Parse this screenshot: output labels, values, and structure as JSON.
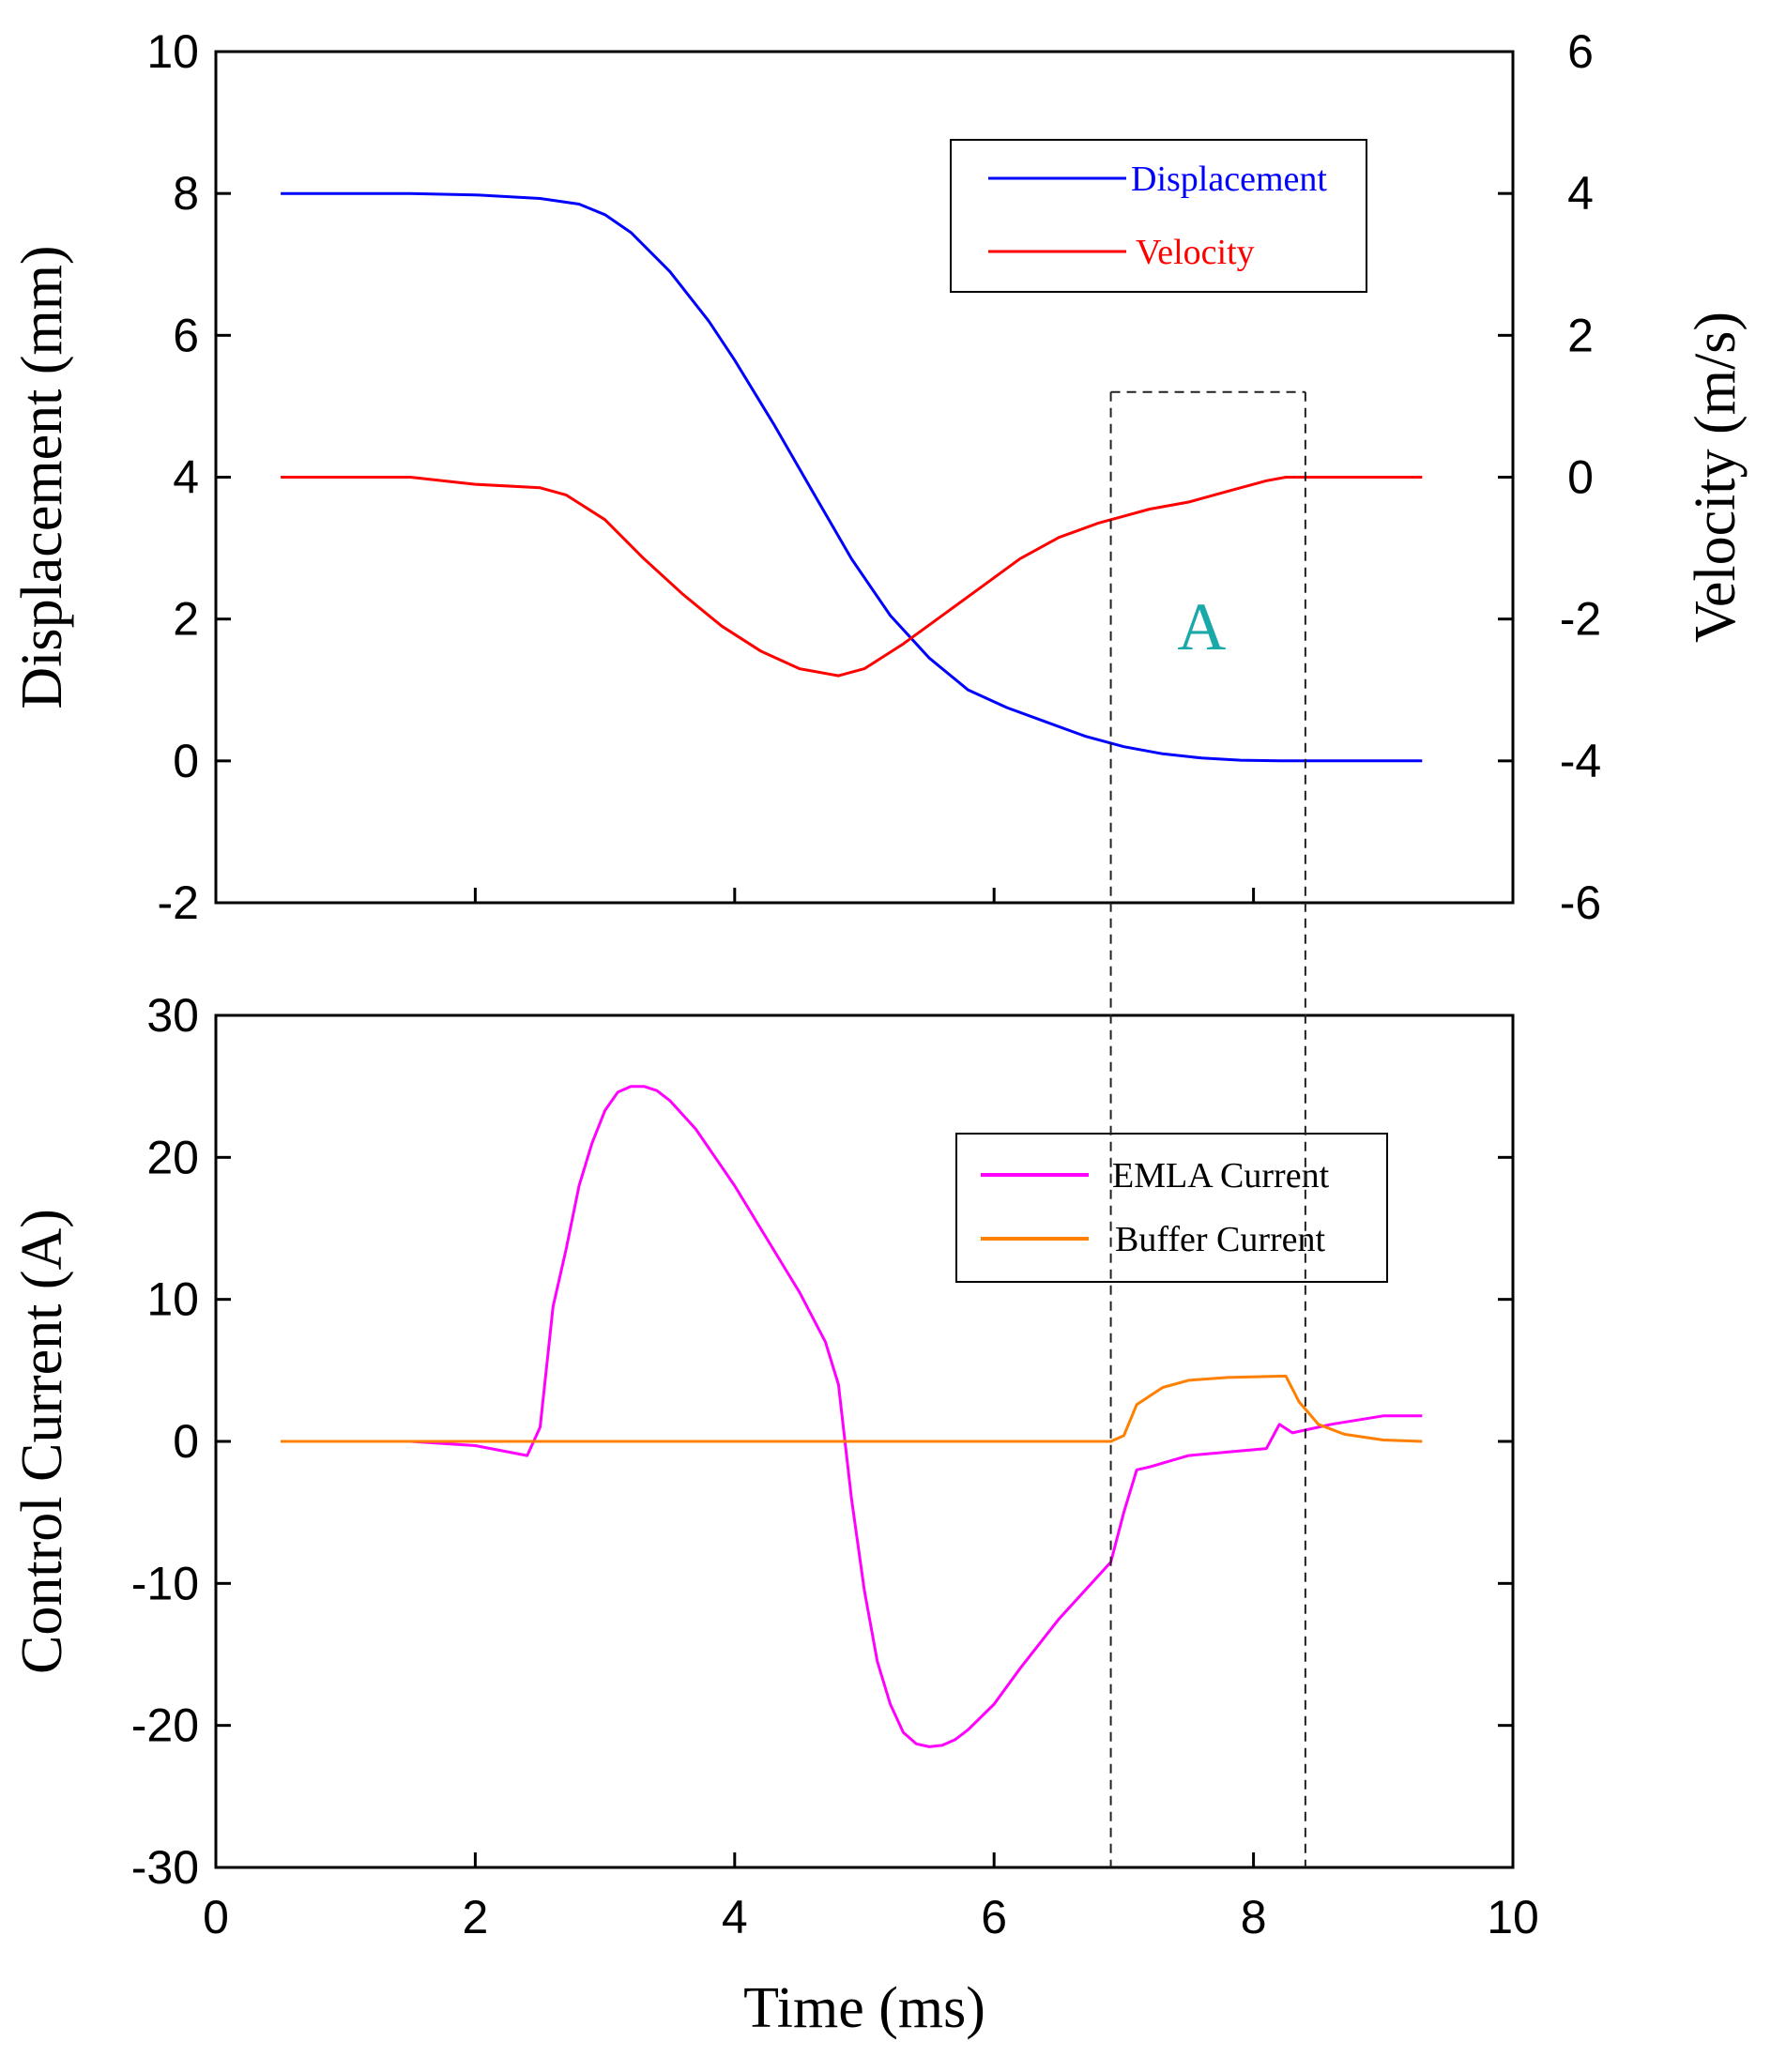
{
  "chart_data": [
    {
      "type": "line",
      "panel": "top",
      "xlabel": "Time (ms)",
      "xlim": [
        0,
        10
      ],
      "xticks": [
        0,
        2,
        4,
        6,
        8,
        10
      ],
      "ylabel": "Displacement (mm)",
      "ylim": [
        -2,
        10
      ],
      "yticks": [
        -2,
        0,
        2,
        4,
        6,
        8,
        10
      ],
      "y2label": "Velocity (m/s)",
      "y2lim": [
        -6,
        6
      ],
      "y2ticks": [
        -6,
        -4,
        -2,
        0,
        2,
        4,
        6
      ],
      "legend_position": "top-right",
      "annotation": {
        "text": "A",
        "x": 7.6,
        "y": 1.9,
        "box_x": [
          6.9,
          8.4
        ],
        "box_top_y": 5.2
      },
      "series": [
        {
          "name": "Displacement",
          "axis": "left",
          "color": "#0000ff",
          "x": [
            0.5,
            1.0,
            1.5,
            2.0,
            2.5,
            2.8,
            3.0,
            3.2,
            3.5,
            3.8,
            4.0,
            4.3,
            4.6,
            4.9,
            5.2,
            5.5,
            5.8,
            6.1,
            6.4,
            6.7,
            7.0,
            7.3,
            7.6,
            7.9,
            8.2,
            8.5,
            9.0,
            9.3
          ],
          "y": [
            8.0,
            8.0,
            8.0,
            7.98,
            7.93,
            7.85,
            7.7,
            7.45,
            6.9,
            6.2,
            5.65,
            4.75,
            3.8,
            2.85,
            2.05,
            1.45,
            1.0,
            0.75,
            0.55,
            0.35,
            0.2,
            0.1,
            0.04,
            0.01,
            0.0,
            0.0,
            0.0,
            0.0
          ]
        },
        {
          "name": "Velocity",
          "axis": "right",
          "color": "#ff0000",
          "x": [
            0.5,
            1.0,
            1.5,
            2.0,
            2.5,
            2.7,
            3.0,
            3.3,
            3.6,
            3.9,
            4.2,
            4.5,
            4.8,
            5.0,
            5.3,
            5.6,
            5.9,
            6.2,
            6.5,
            6.8,
            7.0,
            7.2,
            7.5,
            7.8,
            8.1,
            8.25,
            8.4,
            9.0,
            9.3
          ],
          "y": [
            0.0,
            0.0,
            0.0,
            -0.1,
            -0.15,
            -0.25,
            -0.6,
            -1.15,
            -1.65,
            -2.1,
            -2.45,
            -2.7,
            -2.8,
            -2.7,
            -2.35,
            -1.95,
            -1.55,
            -1.15,
            -0.85,
            -0.65,
            -0.55,
            -0.45,
            -0.35,
            -0.2,
            -0.05,
            0.0,
            0.0,
            0.0,
            0.0
          ]
        }
      ]
    },
    {
      "type": "line",
      "panel": "bottom",
      "xlabel": "Time (ms)",
      "xlim": [
        0,
        10
      ],
      "xticks": [
        0,
        2,
        4,
        6,
        8,
        10
      ],
      "ylabel": "Control Current (A)",
      "ylim": [
        -30,
        30
      ],
      "yticks": [
        -30,
        -20,
        -10,
        0,
        10,
        20,
        30
      ],
      "legend_position": "upper-right",
      "series": [
        {
          "name": "EMLA Current",
          "color": "#ff00ff",
          "x": [
            0.5,
            1.5,
            2.0,
            2.4,
            2.5,
            2.6,
            2.7,
            2.8,
            2.9,
            3.0,
            3.1,
            3.2,
            3.3,
            3.4,
            3.5,
            3.7,
            4.0,
            4.2,
            4.5,
            4.7,
            4.8,
            4.9,
            5.0,
            5.1,
            5.2,
            5.3,
            5.4,
            5.5,
            5.6,
            5.7,
            5.8,
            6.0,
            6.2,
            6.5,
            6.9,
            7.0,
            7.1,
            7.2,
            7.5,
            8.1,
            8.2,
            8.3,
            8.4,
            8.6,
            9.0,
            9.3
          ],
          "y": [
            0,
            0,
            -0.3,
            -1.0,
            1.0,
            9.5,
            13.5,
            18.0,
            21.0,
            23.3,
            24.6,
            25.0,
            25.0,
            24.7,
            24.0,
            22.0,
            18.0,
            15.0,
            10.5,
            7.0,
            4.0,
            -4.0,
            -10.5,
            -15.5,
            -18.5,
            -20.5,
            -21.3,
            -21.5,
            -21.4,
            -21.0,
            -20.3,
            -18.5,
            -16.0,
            -12.5,
            -8.5,
            -5.0,
            -2.0,
            -1.8,
            -1.0,
            -0.5,
            1.2,
            0.6,
            0.8,
            1.2,
            1.8,
            1.8
          ]
        },
        {
          "name": "Buffer Current",
          "color": "#ff8000",
          "x": [
            0.5,
            6.9,
            7.0,
            7.1,
            7.3,
            7.5,
            7.8,
            8.25,
            8.35,
            8.5,
            8.7,
            9.0,
            9.3
          ],
          "y": [
            0,
            0,
            0.4,
            2.6,
            3.8,
            4.3,
            4.5,
            4.6,
            2.8,
            1.2,
            0.5,
            0.1,
            0.0
          ]
        }
      ]
    }
  ]
}
